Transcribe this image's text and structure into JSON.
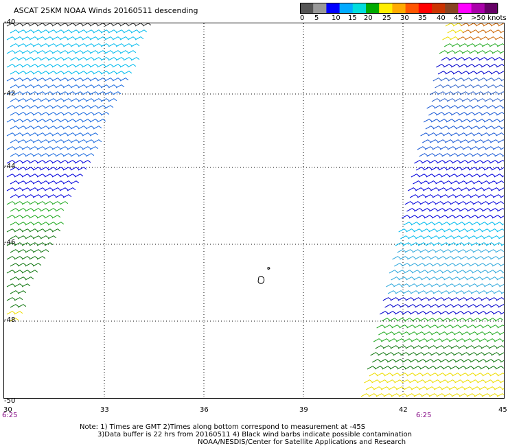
{
  "header": {
    "title": "ASCAT 25KM NOAA Winds 20160511 descending"
  },
  "legend": {
    "colors": [
      "#555555",
      "#999999",
      "#0000ff",
      "#00aaff",
      "#00dddd",
      "#00aa00",
      "#ffee00",
      "#ffaa00",
      "#ff5500",
      "#ff0000",
      "#cc3300",
      "#884422",
      "#ff00ff",
      "#aa00aa",
      "#660066"
    ],
    "labels": [
      "0",
      "5",
      "10",
      "15",
      "20",
      "25",
      "30",
      "35",
      "40",
      "45",
      ">50 knots"
    ]
  },
  "map": {
    "lat_labels": [
      "-40",
      "-42",
      "-44",
      "-46",
      "-48",
      "-50"
    ],
    "lon_labels": [
      "30",
      "33",
      "36",
      "39",
      "42",
      "45"
    ],
    "time_labels": [
      "6:25",
      "6:25"
    ]
  },
  "notes": {
    "line1": "Note: 1) Times are GMT 2)Times along bottom correspond to measurement at -45S",
    "line2": "3)Data buffer is 22 hrs from 20160511 4) Black wind barbs indicate possible contamination",
    "line3": "NOAA/NESDIS/Center for Satellite Applications and Research"
  }
}
